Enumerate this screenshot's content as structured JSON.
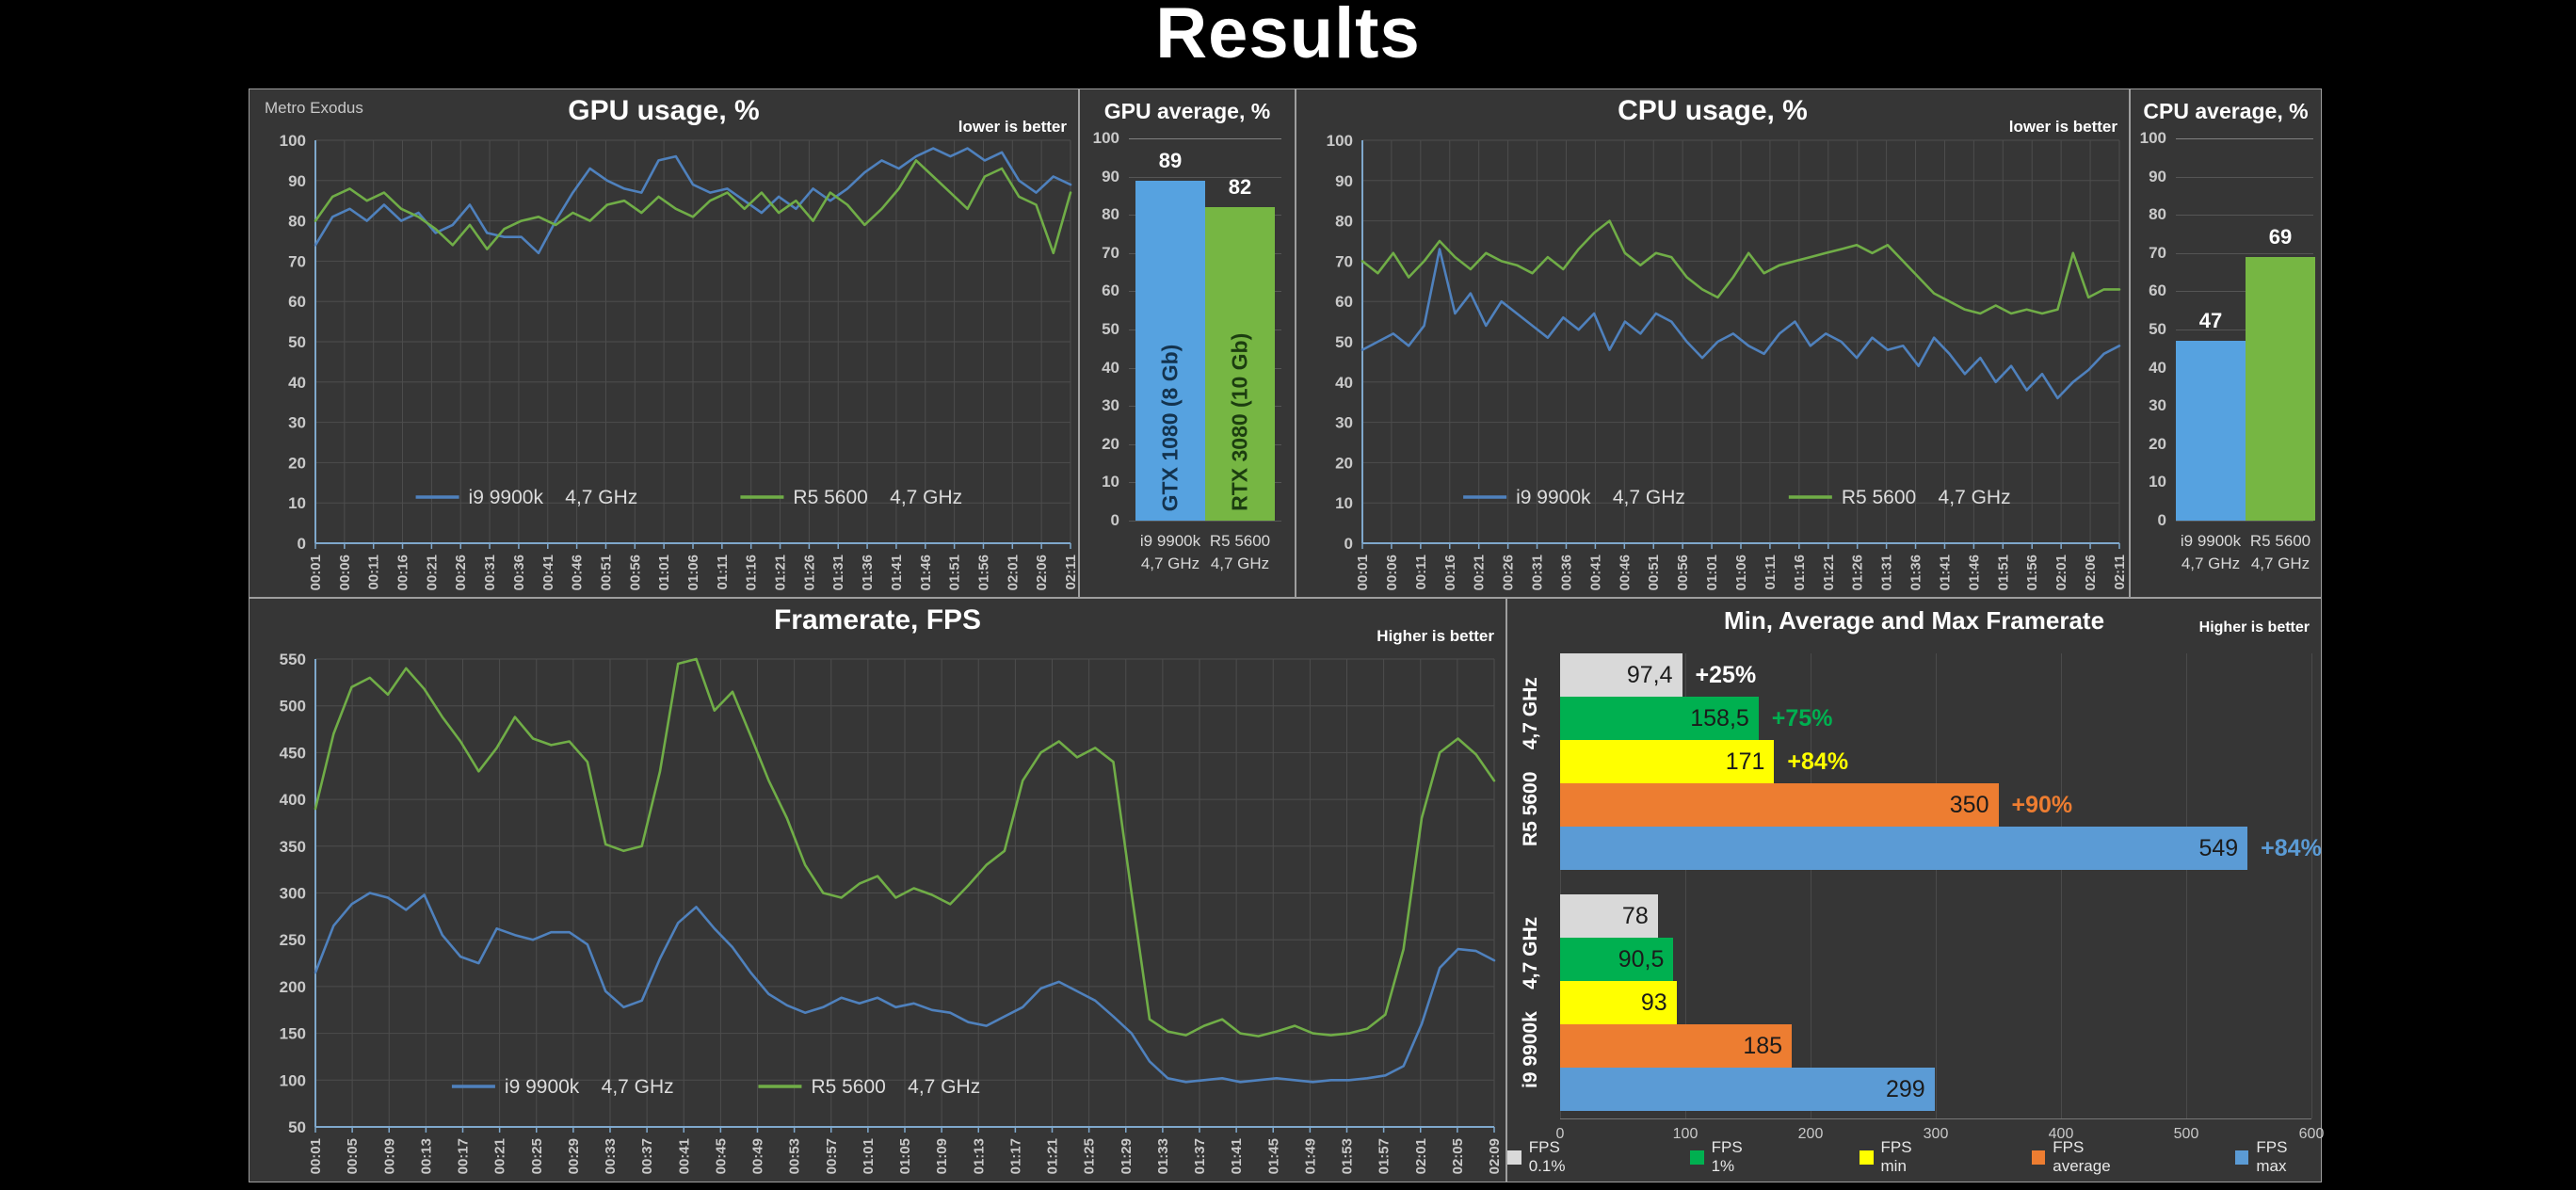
{
  "page_title": "Results",
  "colors": {
    "background": "#000000",
    "panel": "#363636",
    "grid": "#4d4d4d",
    "axis": "#7fa8cc",
    "tick_text": "#c9c9c9",
    "title_text": "#ffffff",
    "line_blue": "#4f81bd",
    "line_green": "#70ad47",
    "bar_blue": "#56a2e0",
    "bar_green": "#76b643",
    "fps_0_1": "#d9d9d9",
    "fps_1": "#00b050",
    "fps_min": "#ffff00",
    "fps_average": "#ed7d31",
    "fps_max": "#5b9bd5"
  },
  "chart_data": [
    {
      "id": "gpu_usage",
      "type": "line",
      "title": "GPU usage, %",
      "note": "lower is better",
      "corner_label": "Metro Exodus",
      "ylim": [
        0,
        100
      ],
      "ytick_step": 10,
      "x_labels": [
        "00:01",
        "00:06",
        "00:11",
        "00:16",
        "00:21",
        "00:26",
        "00:31",
        "00:36",
        "00:41",
        "00:46",
        "00:51",
        "00:56",
        "01:01",
        "01:06",
        "01:11",
        "01:16",
        "01:21",
        "01:26",
        "01:31",
        "01:36",
        "01:41",
        "01:46",
        "01:51",
        "01:56",
        "02:01",
        "02:06",
        "02:11"
      ],
      "series": [
        {
          "name": "i9 9900k",
          "clock": "4,7 GHz",
          "color": "#4f81bd",
          "values": [
            74,
            81,
            83,
            80,
            84,
            80,
            82,
            77,
            79,
            84,
            77,
            76,
            76,
            72,
            80,
            87,
            93,
            90,
            88,
            87,
            95,
            96,
            89,
            87,
            88,
            85,
            82,
            86,
            83,
            88,
            85,
            88,
            92,
            95,
            93,
            96,
            98,
            96,
            98,
            95,
            97,
            90,
            87,
            91,
            89
          ]
        },
        {
          "name": "R5 5600",
          "clock": "4,7 GHz",
          "color": "#70ad47",
          "values": [
            80,
            86,
            88,
            85,
            87,
            83,
            81,
            78,
            74,
            79,
            73,
            78,
            80,
            81,
            79,
            82,
            80,
            84,
            85,
            82,
            86,
            83,
            81,
            85,
            87,
            83,
            87,
            82,
            85,
            80,
            87,
            84,
            79,
            83,
            88,
            95,
            91,
            87,
            83,
            91,
            93,
            86,
            84,
            72,
            87
          ]
        }
      ]
    },
    {
      "id": "gpu_average",
      "type": "bar",
      "title": "GPU average, %",
      "ylim": [
        0,
        100
      ],
      "ytick_step": 10,
      "bars": [
        {
          "category": "i9 9900k",
          "clock": "4,7 GHz",
          "value": 89,
          "value_label": "89",
          "inner_label": "GTX 1080 (8 Gb)",
          "color": "#56a2e0",
          "inner_color": "#14334e"
        },
        {
          "category": "R5 5600",
          "clock": "4,7 GHz",
          "value": 82,
          "value_label": "82",
          "inner_label": "RTX 3080 (10 Gb)",
          "color": "#76b643",
          "inner_color": "#1c3d10"
        }
      ]
    },
    {
      "id": "cpu_usage",
      "type": "line",
      "title": "CPU usage, %",
      "note": "lower is better",
      "ylim": [
        0,
        100
      ],
      "ytick_step": 10,
      "x_labels": [
        "00:01",
        "00:06",
        "00:11",
        "00:16",
        "00:21",
        "00:26",
        "00:31",
        "00:36",
        "00:41",
        "00:46",
        "00:51",
        "00:56",
        "01:01",
        "01:06",
        "01:11",
        "01:16",
        "01:21",
        "01:26",
        "01:31",
        "01:36",
        "01:41",
        "01:46",
        "01:51",
        "01:56",
        "02:01",
        "02:06",
        "02:11"
      ],
      "series": [
        {
          "name": "i9 9900k",
          "clock": "4,7 GHz",
          "color": "#4f81bd",
          "values": [
            48,
            50,
            52,
            49,
            54,
            73,
            57,
            62,
            54,
            60,
            57,
            54,
            51,
            56,
            53,
            57,
            48,
            55,
            52,
            57,
            55,
            50,
            46,
            50,
            52,
            49,
            47,
            52,
            55,
            49,
            52,
            50,
            46,
            51,
            48,
            49,
            44,
            51,
            47,
            42,
            46,
            40,
            44,
            38,
            42,
            36,
            40,
            43,
            47,
            49
          ]
        },
        {
          "name": "R5 5600",
          "clock": "4,7 GHz",
          "color": "#70ad47",
          "values": [
            70,
            67,
            72,
            66,
            70,
            75,
            71,
            68,
            72,
            70,
            69,
            67,
            71,
            68,
            73,
            77,
            80,
            72,
            69,
            72,
            71,
            66,
            63,
            61,
            66,
            72,
            67,
            69,
            70,
            71,
            72,
            73,
            74,
            72,
            74,
            70,
            66,
            62,
            60,
            58,
            57,
            59,
            57,
            58,
            57,
            58,
            72,
            61,
            63,
            63
          ]
        }
      ]
    },
    {
      "id": "cpu_average",
      "type": "bar",
      "title": "CPU average, %",
      "ylim": [
        0,
        100
      ],
      "ytick_step": 10,
      "bars": [
        {
          "category": "i9 9900k",
          "clock": "4,7 GHz",
          "value": 47,
          "value_label": "47",
          "inner_label": "",
          "color": "#56a2e0",
          "inner_color": "#14334e"
        },
        {
          "category": "R5 5600",
          "clock": "4,7 GHz",
          "value": 69,
          "value_label": "69",
          "inner_label": "",
          "color": "#76b643",
          "inner_color": "#1c3d10"
        }
      ]
    },
    {
      "id": "framerate",
      "type": "line",
      "title": "Framerate, FPS",
      "note": "Higher is better",
      "ylim": [
        50,
        550
      ],
      "ytick_step": 50,
      "x_labels": [
        "00:01",
        "00:05",
        "00:09",
        "00:13",
        "00:17",
        "00:21",
        "00:25",
        "00:29",
        "00:33",
        "00:37",
        "00:41",
        "00:45",
        "00:49",
        "00:53",
        "00:57",
        "01:01",
        "01:05",
        "01:09",
        "01:13",
        "01:17",
        "01:21",
        "01:25",
        "01:29",
        "01:33",
        "01:37",
        "01:41",
        "01:45",
        "01:49",
        "01:53",
        "01:57",
        "02:01",
        "02:05",
        "02:09"
      ],
      "series": [
        {
          "name": "i9 9900k",
          "clock": "4,7 GHz",
          "color": "#4f81bd",
          "values": [
            215,
            265,
            288,
            300,
            295,
            282,
            298,
            255,
            232,
            225,
            262,
            255,
            250,
            258,
            258,
            245,
            195,
            178,
            185,
            230,
            268,
            285,
            262,
            242,
            215,
            192,
            180,
            172,
            178,
            188,
            182,
            188,
            178,
            182,
            175,
            172,
            162,
            158,
            168,
            178,
            198,
            205,
            195,
            185,
            168,
            150,
            120,
            102,
            98,
            100,
            102,
            98,
            100,
            102,
            100,
            98,
            100,
            100,
            102,
            105,
            115,
            160,
            220,
            240,
            238,
            228
          ]
        },
        {
          "name": "R5 5600",
          "clock": "4,7 GHz",
          "color": "#70ad47",
          "values": [
            390,
            470,
            520,
            530,
            512,
            540,
            518,
            488,
            462,
            430,
            455,
            488,
            465,
            458,
            462,
            440,
            352,
            345,
            350,
            430,
            545,
            550,
            495,
            515,
            468,
            420,
            380,
            330,
            300,
            295,
            310,
            318,
            295,
            305,
            298,
            288,
            308,
            330,
            345,
            420,
            450,
            462,
            445,
            455,
            440,
            300,
            165,
            152,
            148,
            158,
            165,
            150,
            147,
            152,
            158,
            150,
            148,
            150,
            155,
            170,
            240,
            380,
            450,
            465,
            448,
            420
          ]
        }
      ]
    },
    {
      "id": "minmax",
      "type": "hbar",
      "title": "Min, Average and Max Framerate",
      "note": "Higher is better",
      "xlim": [
        0,
        600
      ],
      "xtick_step": 100,
      "x_tick_labels": [
        "0",
        "100",
        "200",
        "300",
        "400",
        "500",
        "600"
      ],
      "metrics": [
        {
          "label": "FPS 0.1%",
          "color": "#d9d9d9"
        },
        {
          "label": "FPS 1%",
          "color": "#00b050"
        },
        {
          "label": "FPS min",
          "color": "#ffff00"
        },
        {
          "label": "FPS average",
          "color": "#ed7d31"
        },
        {
          "label": "FPS max",
          "color": "#5b9bd5"
        }
      ],
      "groups": [
        {
          "name": "R5 5600",
          "clock": "4,7 GHz",
          "values": [
            97.4,
            158.5,
            171,
            350,
            549
          ],
          "value_labels": [
            "97,4",
            "158,5",
            "171",
            "350",
            "549"
          ],
          "pct_labels": [
            "+25%",
            "+75%",
            "+84%",
            "+90%",
            "+84%"
          ],
          "pct_colors": [
            "#ffffff",
            "#00b050",
            "#ffff00",
            "#ed7d31",
            "#5b9bd5"
          ]
        },
        {
          "name": "i9 9900k",
          "clock": "4,7 GHz",
          "values": [
            78,
            90.5,
            93,
            185,
            299
          ],
          "value_labels": [
            "78",
            "90,5",
            "93",
            "185",
            "299"
          ],
          "pct_labels": [
            "",
            "",
            "",
            "",
            ""
          ],
          "pct_colors": [
            "",
            "",
            "",
            "",
            ""
          ]
        }
      ]
    }
  ]
}
